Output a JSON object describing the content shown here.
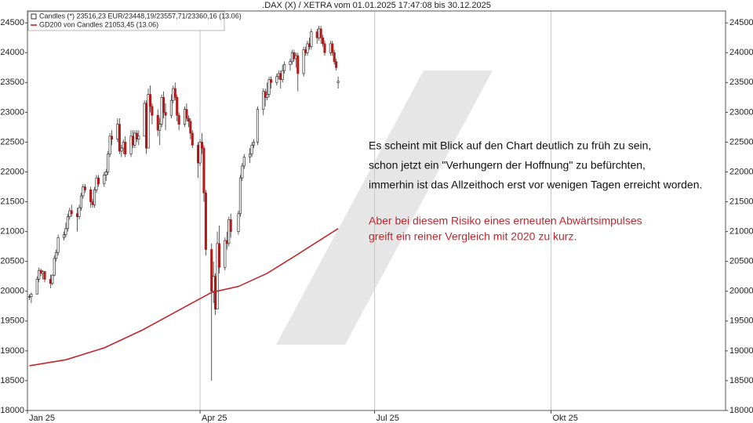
{
  "chart_data": {
    "type": "candlestick",
    "title": ".DAX (X) / XETRA vom 01.01.2025 17:47:08 bis 30.12.2025",
    "xlim": [
      0,
      364
    ],
    "xticks": [
      {
        "value": 0,
        "label": "Jan 25"
      },
      {
        "value": 90,
        "label": "Apr 25"
      },
      {
        "value": 181,
        "label": "Jul 25"
      },
      {
        "value": 273,
        "label": "Okt 25"
      }
    ],
    "ylim": [
      18000,
      24700
    ],
    "yticks": [
      18000,
      18500,
      19000,
      19500,
      20000,
      20500,
      21000,
      21500,
      22000,
      22500,
      23000,
      23500,
      24000,
      24500
    ],
    "grid": "x",
    "legend": "upper left",
    "series": [
      {
        "name": "Candles (*) 23516,23 EUR/23448,19/23557,71/23360,16 (13.06)",
        "type": "candlestick",
        "up_color": "#ffffff",
        "down_color": "#b01c1c",
        "x": [
          1,
          2,
          5,
          6,
          7,
          8,
          9,
          12,
          13,
          14,
          15,
          16,
          19,
          20,
          21,
          22,
          23,
          26,
          27,
          28,
          29,
          30,
          33,
          34,
          35,
          36,
          37,
          40,
          41,
          42,
          43,
          44,
          47,
          48,
          49,
          50,
          51,
          54,
          55,
          56,
          57,
          58,
          61,
          62,
          63,
          64,
          65,
          68,
          69,
          70,
          71,
          72,
          75,
          76,
          77,
          78,
          79,
          82,
          83,
          84,
          85,
          86,
          89,
          90,
          91,
          92,
          93,
          96,
          97,
          98,
          99,
          100,
          103,
          104,
          105,
          106,
          110,
          111,
          112,
          113,
          116,
          117,
          118,
          120,
          123,
          124,
          125,
          126,
          127,
          130,
          131,
          132,
          133,
          134,
          137,
          138,
          139,
          140,
          141,
          144,
          145,
          146,
          147,
          148,
          151,
          152,
          153,
          154,
          155,
          158,
          159,
          160,
          161,
          162
        ],
        "open": [
          19900,
          19910,
          19950,
          20200,
          20350,
          20300,
          20330,
          20200,
          20130,
          20270,
          20550,
          20650,
          20900,
          20950,
          21050,
          21250,
          21350,
          21300,
          21250,
          21400,
          21600,
          21750,
          21700,
          21500,
          21450,
          21700,
          21900,
          21800,
          21950,
          22000,
          22300,
          22600,
          22550,
          22800,
          22350,
          22400,
          22500,
          22300,
          22600,
          22450,
          22650,
          22550,
          22600,
          23150,
          22400,
          23300,
          23100,
          22950,
          22700,
          22800,
          23250,
          23000,
          22950,
          23200,
          23400,
          23250,
          22950,
          22800,
          23050,
          22900,
          22850,
          22650,
          22450,
          22150,
          22500,
          22400,
          21650,
          20700,
          20000,
          20250,
          19700,
          20800,
          20400,
          20850,
          20800,
          21200,
          21000,
          21300,
          21900,
          22100,
          22250,
          22300,
          22450,
          22500,
          23050,
          23350,
          23250,
          23300,
          23550,
          23500,
          23600,
          23650,
          23550,
          23700,
          23800,
          23850,
          24000,
          23900,
          23950,
          23650,
          24050,
          24000,
          24150,
          24100,
          24350,
          24250,
          24400,
          24250,
          24150,
          24000,
          24150,
          24000,
          23850,
          23500
        ],
        "high": [
          19950,
          19980,
          20250,
          20400,
          20380,
          20350,
          20340,
          20280,
          20280,
          20600,
          20700,
          20950,
          21000,
          21150,
          21300,
          21400,
          21450,
          21400,
          21450,
          21650,
          21800,
          21800,
          21750,
          21550,
          21750,
          21950,
          21950,
          22000,
          22050,
          22350,
          22650,
          22700,
          22900,
          22900,
          22450,
          22550,
          22600,
          22700,
          22700,
          22700,
          22700,
          22700,
          23200,
          23200,
          23400,
          23450,
          23150,
          23050,
          22900,
          23300,
          23350,
          23150,
          23300,
          23450,
          23500,
          23300,
          23000,
          23100,
          23150,
          22950,
          22900,
          22700,
          22500,
          22550,
          22650,
          22450,
          21700,
          20800,
          20500,
          20300,
          21000,
          21100,
          20900,
          21000,
          21250,
          21300,
          21350,
          21950,
          22150,
          22300,
          22400,
          22500,
          22550,
          23100,
          23400,
          23400,
          23500,
          23600,
          23600,
          23650,
          23700,
          23700,
          23800,
          23850,
          23900,
          24050,
          24050,
          24000,
          24000,
          24100,
          24100,
          24200,
          24250,
          24400,
          24400,
          24450,
          24450,
          24300,
          24200,
          24200,
          24200,
          24050,
          23900,
          23600
        ],
        "low": [
          19850,
          19800,
          19950,
          20150,
          20250,
          20200,
          20150,
          20050,
          20100,
          20250,
          20500,
          20600,
          20850,
          20900,
          21000,
          21200,
          21250,
          21000,
          21200,
          21350,
          21550,
          21650,
          21400,
          21400,
          21400,
          21650,
          21750,
          21750,
          21850,
          21950,
          22250,
          22450,
          22500,
          22300,
          22250,
          22300,
          22250,
          22250,
          22400,
          22400,
          22500,
          22450,
          22600,
          22300,
          22400,
          23000,
          22800,
          22600,
          22450,
          22750,
          22900,
          22700,
          22900,
          23150,
          23200,
          22850,
          22700,
          22750,
          22850,
          22750,
          22550,
          22400,
          21900,
          22100,
          22300,
          21500,
          20600,
          18500,
          19800,
          19600,
          19700,
          20300,
          20350,
          20700,
          20750,
          20900,
          20950,
          21250,
          21850,
          22050,
          22150,
          22250,
          22400,
          22450,
          22950,
          23100,
          23200,
          23250,
          23400,
          23450,
          23550,
          23400,
          23500,
          23650,
          23700,
          23800,
          23850,
          23750,
          23350,
          23600,
          23950,
          23950,
          24050,
          24050,
          24150,
          24200,
          24150,
          24100,
          23950,
          23950,
          23950,
          23800,
          23700,
          23400
        ],
        "close": [
          19910,
          19950,
          20200,
          20350,
          20300,
          20330,
          20200,
          20130,
          20270,
          20550,
          20650,
          20900,
          20950,
          21050,
          21250,
          21350,
          21300,
          21250,
          21400,
          21600,
          21750,
          21700,
          21500,
          21450,
          21700,
          21900,
          21800,
          21950,
          22000,
          22300,
          22600,
          22550,
          22800,
          22350,
          22400,
          22500,
          22300,
          22600,
          22450,
          22650,
          22550,
          22600,
          23150,
          22400,
          23300,
          23100,
          22950,
          22700,
          22800,
          23250,
          23000,
          22950,
          23200,
          23400,
          23250,
          22950,
          22800,
          23050,
          22900,
          22850,
          22650,
          22450,
          22150,
          22500,
          22400,
          21650,
          20700,
          20000,
          20250,
          19700,
          20800,
          20400,
          20850,
          20800,
          21200,
          21000,
          21300,
          21900,
          22100,
          22250,
          22300,
          22450,
          22500,
          23050,
          23350,
          23250,
          23300,
          23550,
          23500,
          23600,
          23650,
          23550,
          23700,
          23800,
          23850,
          24000,
          23900,
          23950,
          23650,
          24050,
          24000,
          24150,
          24100,
          24350,
          24250,
          24400,
          24250,
          24150,
          24000,
          24150,
          24000,
          23850,
          23750,
          23520
        ]
      },
      {
        "name": "GD200 von Candles 21053,45 (13.06)",
        "type": "line",
        "color": "#c0272d",
        "x": [
          1,
          20,
          40,
          60,
          80,
          96,
          110,
          125,
          140,
          162
        ],
        "values": [
          18750,
          18850,
          19050,
          19350,
          19700,
          19980,
          20080,
          20300,
          20600,
          21050
        ]
      }
    ],
    "annotations": [
      {
        "text": "Es scheint mit Blick auf den Chart deutlich zu früh zu sein,",
        "color": "#111111"
      },
      {
        "text": "schon jetzt ein \"Verhungern der Hoffnung\" zu befürchten,",
        "color": "#111111"
      },
      {
        "text": "immerhin ist das Allzeithoch erst vor wenigen Tagen erreicht worden.",
        "color": "#111111"
      },
      {
        "text": "Aber bei diesem Risiko eines erneuten Abwärtsimpulses",
        "color": "#c0272d"
      },
      {
        "text": "greift ein reiner Vergleich mit 2020 zu kurz.",
        "color": "#c0272d"
      }
    ]
  }
}
